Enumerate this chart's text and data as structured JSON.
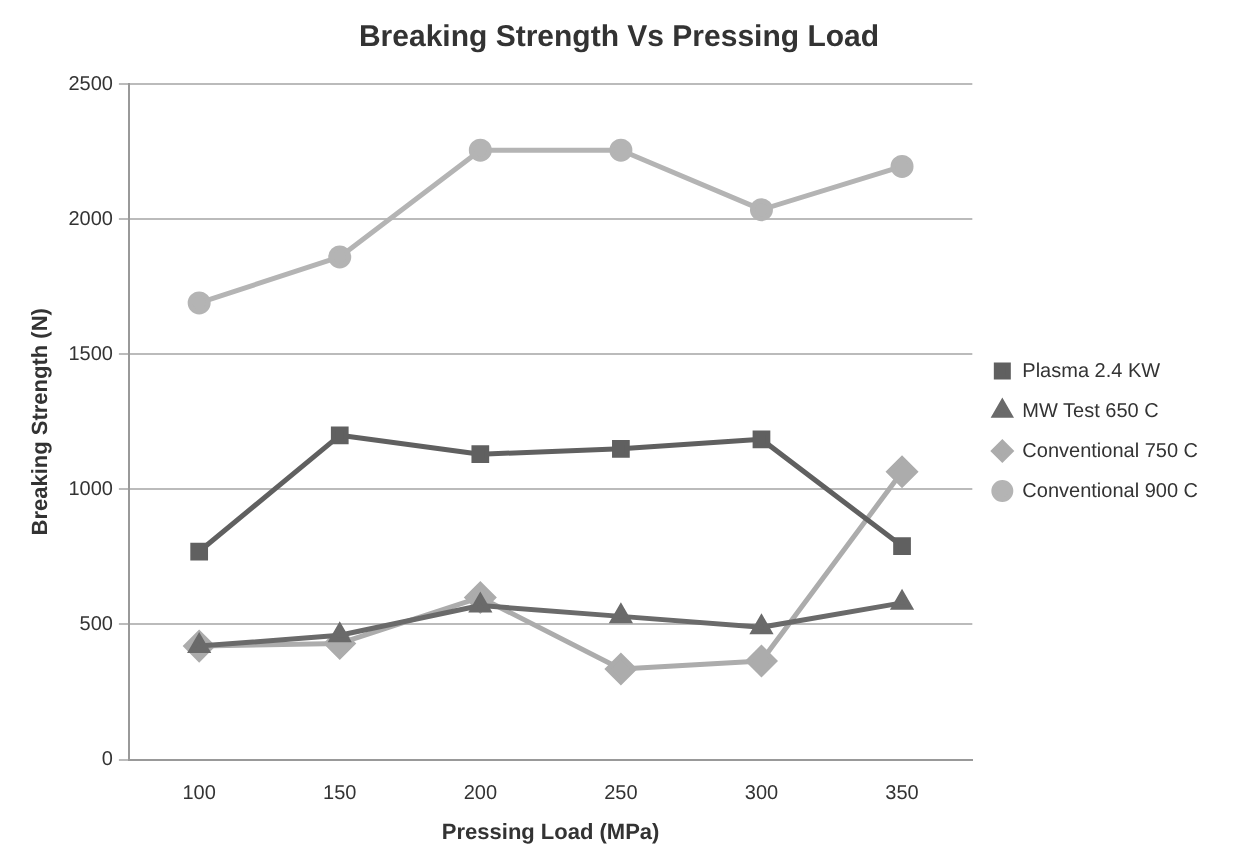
{
  "chart_data": {
    "type": "line",
    "title": "Breaking Strength Vs Pressing Load",
    "xlabel": "Pressing Load (MPa)",
    "ylabel": "Breaking Strength (N)",
    "categories": [
      "100",
      "150",
      "200",
      "250",
      "300",
      "350"
    ],
    "ylim": [
      0,
      2500
    ],
    "yticks": [
      0,
      500,
      1000,
      1500,
      2000,
      2500
    ],
    "grid": "y",
    "legend": "right",
    "series": [
      {
        "name": "Plasma 2.4 KW",
        "color": "#606060",
        "marker": "square",
        "values": [
          770,
          1200,
          1130,
          1150,
          1185,
          790
        ]
      },
      {
        "name": "MW Test 650 C",
        "color": "#6a6a6a",
        "marker": "triangle",
        "values": [
          420,
          460,
          570,
          530,
          490,
          580
        ]
      },
      {
        "name": "Conventional 750 C",
        "color": "#acacac",
        "marker": "diamond",
        "values": [
          420,
          430,
          600,
          335,
          365,
          1065
        ]
      },
      {
        "name": "Conventional 900 C",
        "color": "#b4b4b4",
        "marker": "circle",
        "values": [
          1690,
          1860,
          2255,
          2255,
          2035,
          2195
        ]
      }
    ]
  }
}
